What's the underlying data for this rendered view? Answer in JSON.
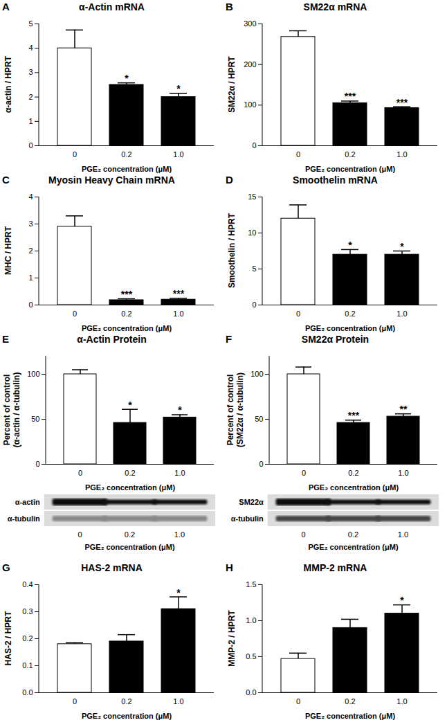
{
  "chart_data": [
    {
      "type": "bar",
      "panel": "A",
      "title": "α-Actin mRNA",
      "y_label": "α-actin / HPRT",
      "x_label": "PGE₂ concentration (μM)",
      "categories": [
        "0",
        "0.2",
        "1.0"
      ],
      "values": [
        4.0,
        2.5,
        2.0
      ],
      "errors": [
        0.75,
        0.08,
        0.15
      ],
      "significance": [
        null,
        "*",
        "*"
      ],
      "colors": [
        "#ffffff",
        "#000000",
        "#000000"
      ],
      "ylim": [
        0,
        5
      ],
      "yticks": [
        0,
        1,
        2,
        3,
        4,
        5
      ],
      "grid": false
    },
    {
      "type": "bar",
      "panel": "B",
      "title": "SM22α mRNA",
      "y_label": "SM22α / HPRT",
      "x_label": "PGE₂ concentration (μM)",
      "categories": [
        "0",
        "0.2",
        "1.0"
      ],
      "values": [
        268,
        105,
        93
      ],
      "errors": [
        15,
        5,
        3
      ],
      "significance": [
        null,
        "***",
        "***"
      ],
      "colors": [
        "#ffffff",
        "#000000",
        "#000000"
      ],
      "ylim": [
        0,
        300
      ],
      "yticks": [
        0,
        100,
        200,
        300
      ],
      "grid": false
    },
    {
      "type": "bar",
      "panel": "C",
      "title": "Myosin Heavy Chain mRNA",
      "y_label": "MHC / HPRT",
      "x_label": "PGE₂ concentration (μM)",
      "categories": [
        "0",
        "0.2",
        "1.0"
      ],
      "values": [
        2.9,
        0.18,
        0.2
      ],
      "errors": [
        0.4,
        0.05,
        0.05
      ],
      "significance": [
        null,
        "***",
        "***"
      ],
      "colors": [
        "#ffffff",
        "#000000",
        "#000000"
      ],
      "ylim": [
        0,
        4
      ],
      "yticks": [
        0,
        1,
        2,
        3,
        4
      ],
      "grid": false
    },
    {
      "type": "bar",
      "panel": "D",
      "title": "Smoothelin mRNA",
      "y_label": "Smoothelin / HPRT",
      "x_label": "PGE₂ concentration (μM)",
      "categories": [
        "0",
        "0.2",
        "1.0"
      ],
      "values": [
        12,
        7,
        7
      ],
      "errors": [
        1.9,
        0.7,
        0.5
      ],
      "significance": [
        null,
        "*",
        "*"
      ],
      "colors": [
        "#ffffff",
        "#000000",
        "#000000"
      ],
      "ylim": [
        0,
        15
      ],
      "yticks": [
        0,
        5,
        10,
        15
      ],
      "grid": false
    },
    {
      "type": "bar",
      "panel": "E",
      "title": "α-Actin Protein",
      "y_label": "Percent of control\n(α-actin / α-tubulin)",
      "x_label": "PGE₂ concentration (μM)",
      "categories": [
        "0",
        "0.2",
        "1.0"
      ],
      "values": [
        100,
        46,
        52
      ],
      "errors": [
        5,
        15,
        3
      ],
      "significance": [
        null,
        "*",
        "*"
      ],
      "colors": [
        "#ffffff",
        "#000000",
        "#000000"
      ],
      "ylim": [
        0,
        120
      ],
      "yticks": [
        0,
        50,
        100
      ],
      "grid": false,
      "blot": {
        "rows": [
          "α-actin",
          "α-tubulin"
        ],
        "lanes": [
          "0",
          "0.2",
          "1.0"
        ],
        "x_label": "PGE₂ concentration (μM)"
      }
    },
    {
      "type": "bar",
      "panel": "F",
      "title": "SM22α Protein",
      "y_label": "Percent of control\n(SM22α / α-tubulin)",
      "x_label": "PGE₂ concentration (μM)",
      "categories": [
        "0",
        "0.2",
        "1.0"
      ],
      "values": [
        100,
        46,
        53
      ],
      "errors": [
        8,
        3,
        3
      ],
      "significance": [
        null,
        "***",
        "**"
      ],
      "colors": [
        "#ffffff",
        "#000000",
        "#000000"
      ],
      "ylim": [
        0,
        120
      ],
      "yticks": [
        0,
        50,
        100
      ],
      "grid": false,
      "blot": {
        "rows": [
          "SM22α",
          "α-tubulin"
        ],
        "lanes": [
          "0",
          "0.2",
          "1.0"
        ],
        "x_label": "PGE₂ concentration (μM)"
      }
    },
    {
      "type": "bar",
      "panel": "G",
      "title": "HAS-2 mRNA",
      "y_label": "HAS-2 / HPRT",
      "x_label": "PGE₂ concentration (μM)",
      "categories": [
        "0",
        "0.2",
        "1.0"
      ],
      "values": [
        0.18,
        0.19,
        0.31
      ],
      "errors": [
        0.005,
        0.025,
        0.045
      ],
      "significance": [
        null,
        null,
        "*"
      ],
      "colors": [
        "#ffffff",
        "#000000",
        "#000000"
      ],
      "ylim": [
        0,
        0.4
      ],
      "yticks": [
        {
          "value": 0,
          "label": "0.0"
        },
        0.1,
        0.2,
        0.3,
        0.4
      ],
      "grid": false
    },
    {
      "type": "bar",
      "panel": "H",
      "title": "MMP-2 mRNA",
      "y_label": "MMP-2 / HPRT",
      "x_label": "PGE₂ concentration (μM)",
      "categories": [
        "0",
        "0.2",
        "1.0"
      ],
      "values": [
        0.47,
        0.9,
        1.1
      ],
      "errors": [
        0.08,
        0.12,
        0.12
      ],
      "significance": [
        null,
        null,
        "*"
      ],
      "colors": [
        "#ffffff",
        "#000000",
        "#000000"
      ],
      "ylim": [
        0,
        1.5
      ],
      "yticks": [
        {
          "value": 0,
          "label": "0.0"
        },
        0.5,
        {
          "value": 1,
          "label": "1.0"
        },
        1.5
      ],
      "grid": false
    }
  ]
}
